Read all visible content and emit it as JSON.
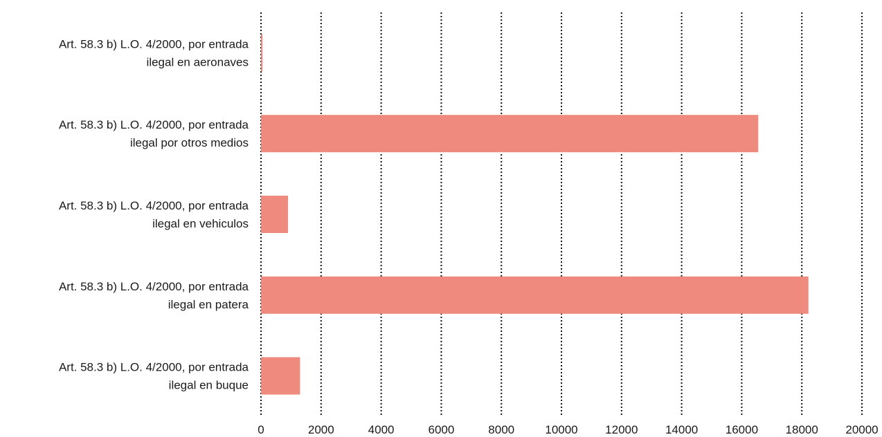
{
  "chart_data": {
    "type": "bar",
    "orientation": "horizontal",
    "categories": [
      [
        "Art. 58.3 b) L.O. 4/2000, por entrada",
        "ilegal en aeronaves"
      ],
      [
        "Art. 58.3 b) L.O. 4/2000, por entrada",
        "ilegal por otros medios"
      ],
      [
        "Art. 58.3 b) L.O. 4/2000, por entrada",
        "ilegal en vehiculos"
      ],
      [
        "Art. 58.3 b) L.O. 4/2000, por entrada",
        "ilegal en patera"
      ],
      [
        "Art. 58.3 b) L.O. 4/2000, por entrada",
        "ilegal en buque"
      ]
    ],
    "values": [
      50,
      16550,
      900,
      18220,
      1300
    ],
    "xlim": [
      0,
      20000
    ],
    "xticks": [
      0,
      2000,
      4000,
      6000,
      8000,
      10000,
      12000,
      14000,
      16000,
      18000,
      20000
    ],
    "grid": "vertical-dotted",
    "bar_color": "#ef8a7e",
    "grid_color": "#111111",
    "title": "",
    "xlabel": "",
    "ylabel": ""
  }
}
